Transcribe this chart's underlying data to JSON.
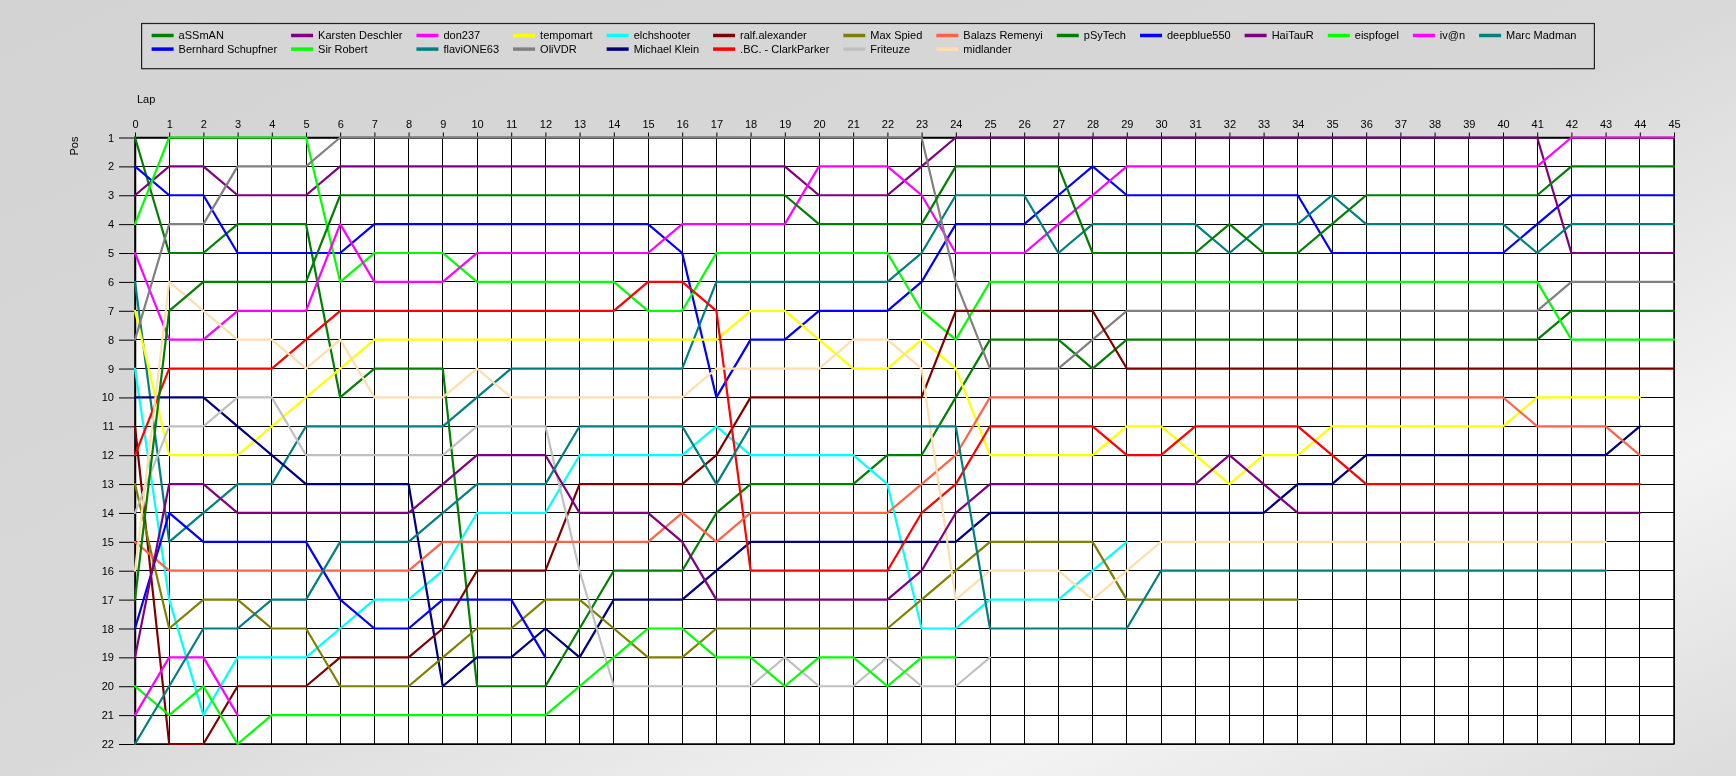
{
  "chart_data": {
    "type": "line",
    "xlabel": "Lap",
    "ylabel": "Pos",
    "x": [
      0,
      1,
      2,
      3,
      4,
      5,
      6,
      7,
      8,
      9,
      10,
      11,
      12,
      13,
      14,
      15,
      16,
      17,
      18,
      19,
      20,
      21,
      22,
      23,
      24,
      25,
      26,
      27,
      28,
      29,
      30,
      31,
      32,
      33,
      34,
      35,
      36,
      37,
      38,
      39,
      40,
      41,
      42,
      43,
      44,
      45
    ],
    "xlim": [
      0,
      45
    ],
    "xticks": [
      0,
      1,
      2,
      3,
      4,
      5,
      6,
      7,
      8,
      9,
      10,
      11,
      12,
      13,
      14,
      15,
      16,
      17,
      18,
      19,
      20,
      21,
      22,
      23,
      24,
      25,
      26,
      27,
      28,
      29,
      30,
      31,
      32,
      33,
      34,
      35,
      36,
      37,
      38,
      39,
      40,
      41,
      42,
      43,
      44,
      45
    ],
    "ylim": [
      22,
      1
    ],
    "yticks": [
      1,
      2,
      3,
      4,
      5,
      6,
      7,
      8,
      9,
      10,
      11,
      12,
      13,
      14,
      15,
      16,
      17,
      18,
      19,
      20,
      21,
      22
    ],
    "grid": true,
    "legend": "top",
    "marker": "none",
    "line_style": "solid",
    "series": [
      {
        "name": "aSSmAN",
        "color": "#008000",
        "values": [
          1,
          5,
          5,
          4,
          4,
          4,
          10,
          9,
          9,
          9,
          20,
          20,
          20,
          18,
          16,
          16,
          16,
          14,
          13,
          13,
          13,
          13,
          12,
          12,
          10,
          8,
          8,
          8,
          9,
          8,
          8,
          8,
          8,
          8,
          8,
          8,
          8,
          8,
          8,
          8,
          8,
          8,
          7,
          7,
          7,
          7
        ]
      },
      {
        "name": "Bernhard Schupfner",
        "color": "#0000ff",
        "values": [
          2,
          3,
          3,
          5,
          5,
          5,
          5,
          4,
          4,
          4,
          4,
          4,
          4,
          4,
          4,
          4,
          5,
          10,
          8,
          8,
          7,
          7,
          7,
          6,
          4,
          4,
          4,
          3,
          2,
          3,
          3,
          3,
          3,
          3,
          3,
          5,
          5,
          5,
          5,
          5,
          5,
          4,
          3,
          3,
          3,
          3
        ]
      },
      {
        "name": "Karsten Deschler",
        "color": "#800080",
        "values": [
          3,
          2,
          2,
          3,
          3,
          3,
          2,
          2,
          2,
          2,
          2,
          2,
          2,
          2,
          2,
          2,
          2,
          2,
          2,
          2,
          3,
          3,
          3,
          2,
          1,
          1,
          1,
          1,
          1,
          1,
          1,
          1,
          1,
          1,
          1,
          1,
          1,
          1,
          1,
          1,
          1,
          1,
          5,
          5,
          5,
          5
        ]
      },
      {
        "name": "Sir Robert",
        "color": "#00ff00",
        "values": [
          4,
          1,
          1,
          1,
          1,
          1,
          6,
          5,
          5,
          5,
          6,
          6,
          6,
          6,
          6,
          7,
          7,
          5,
          5,
          5,
          5,
          5,
          5,
          7,
          8,
          6,
          6,
          6,
          6,
          6,
          6,
          6,
          6,
          6,
          6,
          6,
          6,
          6,
          6,
          6,
          6,
          6,
          8,
          8,
          8,
          8
        ]
      },
      {
        "name": "don237",
        "color": "#ff00ff",
        "values": [
          5,
          8,
          8,
          7,
          7,
          7,
          4,
          6,
          6,
          6,
          5,
          5,
          5,
          5,
          5,
          5,
          4,
          4,
          4,
          4,
          2,
          2,
          2,
          3,
          5,
          5,
          5,
          4,
          3,
          2,
          2,
          2,
          2,
          2,
          2,
          2,
          2,
          2,
          2,
          2,
          2,
          2,
          1,
          1,
          1,
          1
        ]
      },
      {
        "name": "flaviONE63",
        "color": "#008080",
        "values": [
          6,
          15,
          14,
          13,
          13,
          11,
          11,
          11,
          11,
          11,
          10,
          9,
          9,
          9,
          9,
          9,
          9,
          6,
          6,
          6,
          6,
          6,
          6,
          5,
          3,
          3,
          3,
          5,
          4,
          4,
          4,
          4,
          5,
          4,
          4,
          3,
          4,
          4,
          4,
          4,
          4,
          5,
          4,
          4,
          4,
          4
        ]
      },
      {
        "name": "tempomart",
        "color": "#ffff00",
        "values": [
          7,
          12,
          12,
          12,
          11,
          10,
          9,
          8,
          8,
          8,
          8,
          8,
          8,
          8,
          8,
          8,
          8,
          8,
          7,
          7,
          8,
          9,
          9,
          8,
          9,
          12,
          12,
          12,
          12,
          11,
          11,
          12,
          13,
          12,
          12,
          11,
          11,
          11,
          11,
          11,
          11,
          10,
          10,
          10,
          10,
          null
        ]
      },
      {
        "name": "OliVDR",
        "color": "#808080",
        "values": [
          8,
          4,
          4,
          2,
          2,
          2,
          1,
          1,
          1,
          1,
          1,
          1,
          1,
          1,
          1,
          1,
          1,
          1,
          1,
          1,
          1,
          1,
          1,
          1,
          6,
          9,
          9,
          9,
          8,
          7,
          7,
          7,
          7,
          7,
          7,
          7,
          7,
          7,
          7,
          7,
          7,
          7,
          6,
          6,
          6,
          6
        ]
      },
      {
        "name": "elchshooter",
        "color": "#00ffff",
        "values": [
          9,
          17,
          21,
          19,
          19,
          19,
          18,
          17,
          17,
          16,
          14,
          14,
          14,
          12,
          12,
          12,
          12,
          11,
          12,
          12,
          12,
          12,
          13,
          18,
          18,
          17,
          17,
          17,
          16,
          15,
          null,
          null,
          null,
          null,
          null,
          null,
          null,
          null,
          null,
          null,
          null,
          null,
          null,
          null,
          null,
          null
        ]
      },
      {
        "name": "Michael Klein",
        "color": "#000080",
        "values": [
          10,
          10,
          10,
          11,
          12,
          13,
          13,
          13,
          13,
          20,
          19,
          19,
          18,
          19,
          17,
          17,
          17,
          16,
          15,
          15,
          15,
          15,
          15,
          15,
          15,
          14,
          14,
          14,
          14,
          14,
          14,
          14,
          14,
          14,
          13,
          13,
          12,
          12,
          12,
          12,
          12,
          12,
          12,
          12,
          11,
          null
        ]
      },
      {
        "name": "ralf.alexander",
        "color": "#800000",
        "values": [
          11,
          22,
          22,
          20,
          20,
          20,
          19,
          19,
          19,
          18,
          16,
          16,
          16,
          13,
          13,
          13,
          13,
          12,
          10,
          10,
          10,
          10,
          10,
          10,
          7,
          7,
          7,
          7,
          7,
          9,
          9,
          9,
          9,
          9,
          9,
          9,
          9,
          9,
          9,
          9,
          9,
          9,
          9,
          9,
          9,
          9
        ]
      },
      {
        "name": ".BC. - ClarkParker",
        "color": "#ff0000",
        "values": [
          12,
          9,
          9,
          9,
          9,
          8,
          7,
          7,
          7,
          7,
          7,
          7,
          7,
          7,
          7,
          6,
          6,
          7,
          16,
          16,
          16,
          16,
          16,
          14,
          13,
          11,
          11,
          11,
          11,
          12,
          12,
          11,
          11,
          11,
          11,
          12,
          13,
          13,
          13,
          13,
          13,
          13,
          13,
          13,
          13,
          null
        ]
      },
      {
        "name": "Max Spied",
        "color": "#808000",
        "values": [
          13,
          18,
          17,
          17,
          18,
          18,
          20,
          20,
          20,
          19,
          18,
          18,
          17,
          17,
          18,
          19,
          19,
          18,
          18,
          18,
          18,
          18,
          18,
          17,
          16,
          15,
          15,
          15,
          15,
          17,
          17,
          17,
          17,
          17,
          17,
          null,
          null,
          null,
          null,
          null,
          null,
          null,
          null,
          null,
          null,
          null
        ]
      },
      {
        "name": "Friteuze",
        "color": "#c0c0c0",
        "values": [
          14,
          11,
          11,
          10,
          10,
          12,
          12,
          12,
          12,
          12,
          11,
          11,
          11,
          16,
          20,
          20,
          20,
          20,
          20,
          19,
          20,
          20,
          19,
          20,
          20,
          19,
          null,
          null,
          null,
          null,
          null,
          null,
          null,
          null,
          null,
          null,
          null,
          null,
          null,
          null,
          null,
          null,
          null,
          null,
          null,
          null
        ]
      },
      {
        "name": "Balazs Remenyi",
        "color": "#ff6347",
        "values": [
          15,
          16,
          16,
          16,
          16,
          16,
          16,
          16,
          16,
          15,
          15,
          15,
          15,
          15,
          15,
          15,
          14,
          15,
          14,
          14,
          14,
          14,
          14,
          13,
          12,
          10,
          10,
          10,
          10,
          10,
          10,
          10,
          10,
          10,
          10,
          10,
          10,
          10,
          10,
          10,
          10,
          11,
          11,
          11,
          12,
          null
        ]
      },
      {
        "name": "midlander",
        "color": "#ffdead",
        "values": [
          16,
          6,
          7,
          8,
          8,
          9,
          8,
          10,
          10,
          10,
          9,
          10,
          10,
          10,
          10,
          10,
          10,
          9,
          9,
          9,
          9,
          8,
          8,
          9,
          17,
          16,
          16,
          16,
          17,
          16,
          15,
          15,
          15,
          15,
          15,
          15,
          15,
          15,
          15,
          15,
          15,
          15,
          15,
          15,
          null,
          null
        ]
      },
      {
        "name": "pSyTech",
        "color": "#008000",
        "values": [
          17,
          7,
          6,
          6,
          6,
          6,
          3,
          3,
          3,
          3,
          3,
          3,
          3,
          3,
          3,
          3,
          3,
          3,
          3,
          3,
          4,
          4,
          4,
          4,
          2,
          2,
          2,
          2,
          5,
          5,
          5,
          5,
          4,
          5,
          5,
          4,
          3,
          3,
          3,
          3,
          3,
          3,
          2,
          2,
          2,
          2
        ]
      },
      {
        "name": "deepblue550",
        "color": "#0000ff",
        "values": [
          18,
          14,
          15,
          15,
          15,
          15,
          17,
          18,
          18,
          17,
          17,
          17,
          19,
          null,
          null,
          null,
          null,
          null,
          null,
          null,
          null,
          null,
          null,
          null,
          null,
          null,
          null,
          null,
          null,
          null,
          null,
          null,
          null,
          null,
          null,
          null,
          null,
          null,
          null,
          null,
          null,
          null,
          null,
          null,
          null,
          null
        ]
      },
      {
        "name": "HaiTauR",
        "color": "#800080",
        "values": [
          19,
          13,
          13,
          14,
          14,
          14,
          14,
          14,
          14,
          13,
          12,
          12,
          12,
          14,
          14,
          14,
          15,
          17,
          17,
          17,
          17,
          17,
          17,
          16,
          14,
          13,
          13,
          13,
          13,
          13,
          13,
          13,
          12,
          13,
          14,
          14,
          14,
          14,
          14,
          14,
          14,
          14,
          14,
          14,
          14,
          null
        ]
      },
      {
        "name": "eispfogel",
        "color": "#00ff00",
        "values": [
          20,
          21,
          20,
          22,
          21,
          21,
          21,
          21,
          21,
          21,
          21,
          21,
          21,
          20,
          19,
          18,
          18,
          19,
          19,
          20,
          19,
          19,
          20,
          19,
          19,
          null,
          null,
          null,
          null,
          null,
          null,
          null,
          null,
          null,
          null,
          null,
          null,
          null,
          null,
          null,
          null,
          null,
          null,
          null,
          null,
          null
        ]
      },
      {
        "name": "iv@n",
        "color": "#ff00ff",
        "values": [
          21,
          19,
          19,
          21,
          null,
          null,
          null,
          null,
          null,
          null,
          null,
          null,
          null,
          null,
          null,
          null,
          null,
          null,
          null,
          null,
          null,
          null,
          null,
          null,
          null,
          null,
          null,
          null,
          null,
          null,
          null,
          null,
          null,
          null,
          null,
          null,
          null,
          null,
          null,
          null,
          null,
          null,
          null,
          null,
          null,
          null
        ]
      },
      {
        "name": "Marc Madman",
        "color": "#008080",
        "values": [
          22,
          20,
          18,
          18,
          17,
          17,
          15,
          15,
          15,
          14,
          13,
          13,
          13,
          11,
          11,
          11,
          11,
          13,
          11,
          11,
          11,
          11,
          11,
          11,
          11,
          18,
          18,
          18,
          18,
          18,
          16,
          16,
          16,
          16,
          16,
          16,
          16,
          16,
          16,
          16,
          16,
          16,
          16,
          16,
          null,
          null
        ]
      }
    ]
  }
}
